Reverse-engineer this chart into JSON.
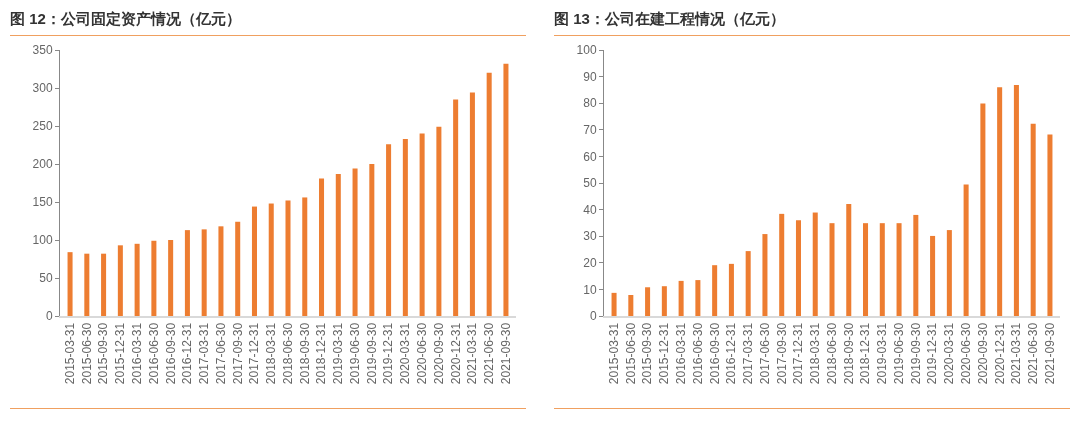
{
  "chart_data": [
    {
      "type": "bar",
      "title": "图 12：公司固定资产情况（亿元）",
      "categories": [
        "2015-03-31",
        "2015-06-30",
        "2015-09-30",
        "2015-12-31",
        "2016-03-31",
        "2016-06-30",
        "2016-09-30",
        "2016-12-31",
        "2017-03-31",
        "2017-06-30",
        "2017-09-30",
        "2017-12-31",
        "2018-03-31",
        "2018-06-30",
        "2018-09-30",
        "2018-12-31",
        "2019-03-31",
        "2019-06-30",
        "2019-09-30",
        "2019-12-31",
        "2020-03-31",
        "2020-06-30",
        "2020-09-30",
        "2020-12-31",
        "2021-03-31",
        "2021-06-30",
        "2021-09-30"
      ],
      "values": [
        84,
        82,
        82,
        93,
        95,
        99,
        100,
        113,
        114,
        118,
        124,
        144,
        148,
        152,
        156,
        181,
        187,
        194,
        200,
        226,
        233,
        240,
        249,
        285,
        294,
        320,
        332
      ],
      "color": "#ed7d31",
      "ylim": [
        0,
        350
      ],
      "yticks": [
        0,
        50,
        100,
        150,
        200,
        250,
        300,
        350
      ],
      "grid": false
    },
    {
      "type": "bar",
      "title": "图 13：公司在建工程情况（亿元）",
      "categories": [
        "2015-03-31",
        "2015-06-30",
        "2015-09-30",
        "2015-12-31",
        "2016-03-31",
        "2016-06-30",
        "2016-09-30",
        "2016-12-31",
        "2017-03-31",
        "2017-06-30",
        "2017-09-30",
        "2017-12-31",
        "2018-03-31",
        "2018-06-30",
        "2018-09-30",
        "2018-12-31",
        "2019-03-31",
        "2019-06-30",
        "2019-09-30",
        "2019-12-31",
        "2020-03-31",
        "2020-06-30",
        "2020-09-30",
        "2020-12-31",
        "2021-03-31",
        "2021-06-30",
        "2021-09-30"
      ],
      "values": [
        8.7,
        7.9,
        10.8,
        11.2,
        13.2,
        13.5,
        19.1,
        19.6,
        24.4,
        30.8,
        38.4,
        36.0,
        38.9,
        34.9,
        42.1,
        34.9,
        34.9,
        34.9,
        38.0,
        30.1,
        32.3,
        49.4,
        79.9,
        86.0,
        86.8,
        72.3,
        68.2
      ],
      "color": "#ed7d31",
      "ylim": [
        0,
        100
      ],
      "yticks": [
        0,
        10,
        20,
        30,
        40,
        50,
        60,
        70,
        80,
        90,
        100
      ],
      "grid": false
    }
  ]
}
